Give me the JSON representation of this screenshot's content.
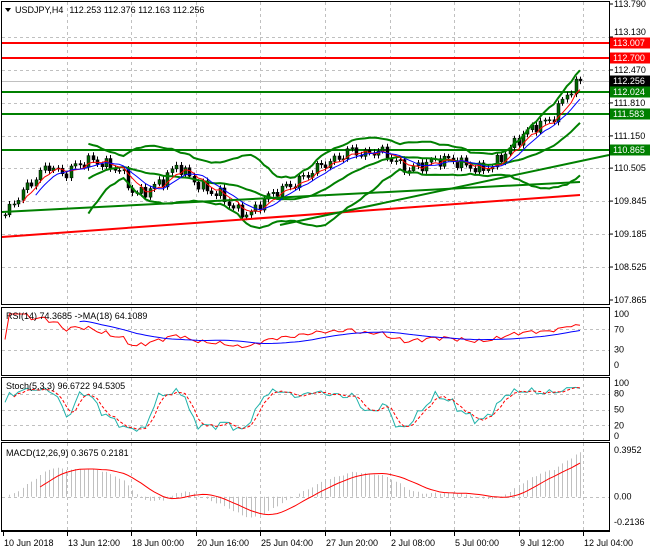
{
  "chart_data": {
    "type": "candlestick",
    "symbol": "USDJPY",
    "timeframe": "H4",
    "header": {
      "title": "USDJPY,H4",
      "ohlc": "112.253 112.376 112.163 112.256"
    },
    "price_axis": {
      "ylim": [
        107.865,
        113.79
      ],
      "ticks": [
        "113.790",
        "113.130",
        "112.470",
        "111.810",
        "111.150",
        "110.505",
        "109.845",
        "109.185",
        "108.525",
        "107.865"
      ]
    },
    "current_price": {
      "label": "112.256",
      "color": "#000000"
    },
    "levels": [
      {
        "label": "113.007",
        "value": 113.007,
        "color": "#ff0000"
      },
      {
        "label": "112.700",
        "value": 112.7,
        "color": "#ff0000"
      },
      {
        "label": "112.024",
        "value": 112.024,
        "color": "#008000"
      },
      {
        "label": "111.583",
        "value": 111.583,
        "color": "#008000"
      },
      {
        "label": "110.865",
        "value": 110.865,
        "color": "#008000"
      }
    ],
    "closes_approx": [
      109.57,
      109.97,
      110.27,
      110.57,
      110.37,
      110.57,
      110.67,
      110.57,
      110.47,
      109.97,
      110.07,
      110.27,
      110.57,
      110.27,
      110.07,
      109.97,
      109.67,
      109.57,
      109.87,
      110.07,
      110.17,
      110.37,
      110.57,
      110.67,
      110.87,
      110.77,
      110.87,
      110.67,
      110.47,
      110.57,
      110.67,
      110.67,
      110.57,
      110.47,
      110.57,
      110.87,
      111.17,
      111.37,
      111.47,
      111.97,
      112.256
    ],
    "x_axis": {
      "labels": [
        "10 Jun 2018",
        "13 Jun 12:00",
        "18 Jun 00:00",
        "20 Jun 16:00",
        "25 Jun 04:00",
        "27 Jun 20:00",
        "2 Jul 08:00",
        "5 Jul 00:00",
        "9 Jul 12:00",
        "12 Jul 04:00"
      ]
    },
    "rsi": {
      "label": "RSI(14) 74.3685  ->MA(18) 64.1089",
      "ticks": [
        "100",
        "70",
        "30",
        "0"
      ],
      "color": "#ff0000",
      "ma_color": "#0000ff"
    },
    "stoch": {
      "label": "Stoch(5,3,3) 96.6722 94.5305",
      "ticks": [
        "100",
        "80",
        "50",
        "20",
        "0"
      ],
      "color": "#20b2aa",
      "signal_color": "#ff0000"
    },
    "macd": {
      "label": "MACD(12,26,9) 0.3675 0.2181",
      "ticks": [
        "0.3952",
        "0.00",
        "-0.2136"
      ],
      "ylim": [
        -0.2136,
        0.3952
      ],
      "hist_color": "#c0c0c0",
      "signal_color": "#ff0000"
    }
  }
}
